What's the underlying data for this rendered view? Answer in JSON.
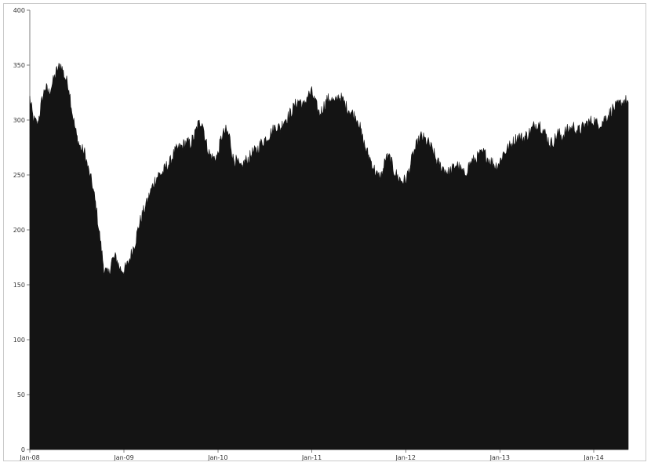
{
  "chart_data": {
    "type": "area",
    "title": "",
    "xlabel": "",
    "ylabel": "",
    "ylim": [
      0,
      400
    ],
    "xlim": [
      "2008-01-01",
      "2014-05-15"
    ],
    "grid": false,
    "legend": "none",
    "fill_color": "#141414",
    "y_ticks": [
      {
        "value": 0,
        "label": "0"
      },
      {
        "value": 50,
        "label": "50"
      },
      {
        "value": 100,
        "label": "100"
      },
      {
        "value": 150,
        "label": "150"
      },
      {
        "value": 200,
        "label": "200"
      },
      {
        "value": 250,
        "label": "250"
      },
      {
        "value": 300,
        "label": "300"
      },
      {
        "value": 350,
        "label": "350"
      },
      {
        "value": 400,
        "label": "400"
      }
    ],
    "x_ticks": [
      {
        "value": "2008-01-01",
        "label": "Jan-08"
      },
      {
        "value": "2009-01-01",
        "label": "Jan-09"
      },
      {
        "value": "2010-01-01",
        "label": "Jan-10"
      },
      {
        "value": "2011-01-01",
        "label": "Jan-11"
      },
      {
        "value": "2012-01-01",
        "label": "Jan-12"
      },
      {
        "value": "2013-01-01",
        "label": "Jan-13"
      },
      {
        "value": "2014-01-01",
        "label": "Jan-14"
      }
    ],
    "series": [
      {
        "x": [
          "2008-01-01",
          "2008-01-15",
          "2008-02-01",
          "2008-02-15",
          "2008-03-01",
          "2008-03-15",
          "2008-04-01",
          "2008-04-15",
          "2008-05-01",
          "2008-05-15",
          "2008-06-01",
          "2008-06-15",
          "2008-07-01",
          "2008-07-15",
          "2008-08-01",
          "2008-08-15",
          "2008-09-01",
          "2008-09-15",
          "2008-10-01",
          "2008-10-15",
          "2008-11-01",
          "2008-11-15",
          "2008-12-01",
          "2008-12-15",
          "2009-01-01",
          "2009-01-15",
          "2009-02-01",
          "2009-02-15",
          "2009-03-01",
          "2009-03-15",
          "2009-04-01",
          "2009-04-15",
          "2009-05-01",
          "2009-05-15",
          "2009-06-01",
          "2009-06-15",
          "2009-07-01",
          "2009-07-15",
          "2009-08-01",
          "2009-08-15",
          "2009-09-01",
          "2009-09-15",
          "2009-10-01",
          "2009-10-15",
          "2009-11-01",
          "2009-11-15",
          "2009-12-01",
          "2009-12-15",
          "2010-01-01",
          "2010-01-15",
          "2010-02-01",
          "2010-02-15",
          "2010-03-01",
          "2010-03-15",
          "2010-04-01",
          "2010-04-15",
          "2010-05-01",
          "2010-05-15",
          "2010-06-01",
          "2010-06-15",
          "2010-07-01",
          "2010-07-15",
          "2010-08-01",
          "2010-08-15",
          "2010-09-01",
          "2010-09-15",
          "2010-10-01",
          "2010-10-15",
          "2010-11-01",
          "2010-11-15",
          "2010-12-01",
          "2010-12-15",
          "2011-01-01",
          "2011-01-15",
          "2011-02-01",
          "2011-02-15",
          "2011-03-01",
          "2011-03-15",
          "2011-04-01",
          "2011-04-15",
          "2011-05-01",
          "2011-05-15",
          "2011-06-01",
          "2011-06-15",
          "2011-07-01",
          "2011-07-15",
          "2011-08-01",
          "2011-08-15",
          "2011-09-01",
          "2011-09-15",
          "2011-10-01",
          "2011-10-15",
          "2011-11-01",
          "2011-11-15",
          "2011-12-01",
          "2011-12-15",
          "2012-01-01",
          "2012-01-15",
          "2012-02-01",
          "2012-02-15",
          "2012-03-01",
          "2012-03-15",
          "2012-04-01",
          "2012-04-15",
          "2012-05-01",
          "2012-05-15",
          "2012-06-01",
          "2012-06-15",
          "2012-07-01",
          "2012-07-15",
          "2012-08-01",
          "2012-08-15",
          "2012-09-01",
          "2012-09-15",
          "2012-10-01",
          "2012-10-15",
          "2012-11-01",
          "2012-11-15",
          "2012-12-01",
          "2012-12-15",
          "2013-01-01",
          "2013-01-15",
          "2013-02-01",
          "2013-02-15",
          "2013-03-01",
          "2013-03-15",
          "2013-04-01",
          "2013-04-15",
          "2013-05-01",
          "2013-05-15",
          "2013-06-01",
          "2013-06-15",
          "2013-07-01",
          "2013-07-15",
          "2013-08-01",
          "2013-08-15",
          "2013-09-01",
          "2013-09-15",
          "2013-10-01",
          "2013-10-15",
          "2013-11-01",
          "2013-11-15",
          "2013-12-01",
          "2013-12-15",
          "2014-01-01",
          "2014-01-15",
          "2014-02-01",
          "2014-02-15",
          "2014-03-01",
          "2014-03-15",
          "2014-04-01",
          "2014-04-15",
          "2014-05-01",
          "2014-05-15"
        ],
        "values": [
          320,
          300,
          296,
          315,
          330,
          325,
          335,
          345,
          350,
          340,
          330,
          305,
          285,
          275,
          270,
          255,
          240,
          220,
          190,
          165,
          158,
          172,
          175,
          165,
          163,
          168,
          180,
          190,
          205,
          215,
          225,
          235,
          245,
          250,
          252,
          258,
          262,
          270,
          274,
          276,
          280,
          278,
          285,
          295,
          300,
          280,
          268,
          265,
          268,
          285,
          290,
          285,
          265,
          262,
          255,
          262,
          265,
          270,
          272,
          278,
          282,
          285,
          290,
          295,
          292,
          300,
          303,
          308,
          315,
          318,
          312,
          322,
          325,
          315,
          305,
          312,
          318,
          320,
          315,
          322,
          318,
          312,
          308,
          304,
          300,
          285,
          272,
          265,
          255,
          248,
          250,
          265,
          265,
          255,
          248,
          245,
          245,
          255,
          270,
          278,
          285,
          282,
          278,
          272,
          262,
          258,
          255,
          252,
          255,
          260,
          255,
          250,
          258,
          262,
          265,
          268,
          270,
          265,
          262,
          258,
          262,
          270,
          274,
          278,
          282,
          285,
          283,
          286,
          290,
          295,
          298,
          292,
          285,
          278,
          282,
          288,
          285,
          290,
          292,
          294,
          290,
          292,
          296,
          298,
          300,
          296,
          298,
          302,
          305,
          310,
          312,
          315,
          318,
          316
        ]
      }
    ]
  }
}
